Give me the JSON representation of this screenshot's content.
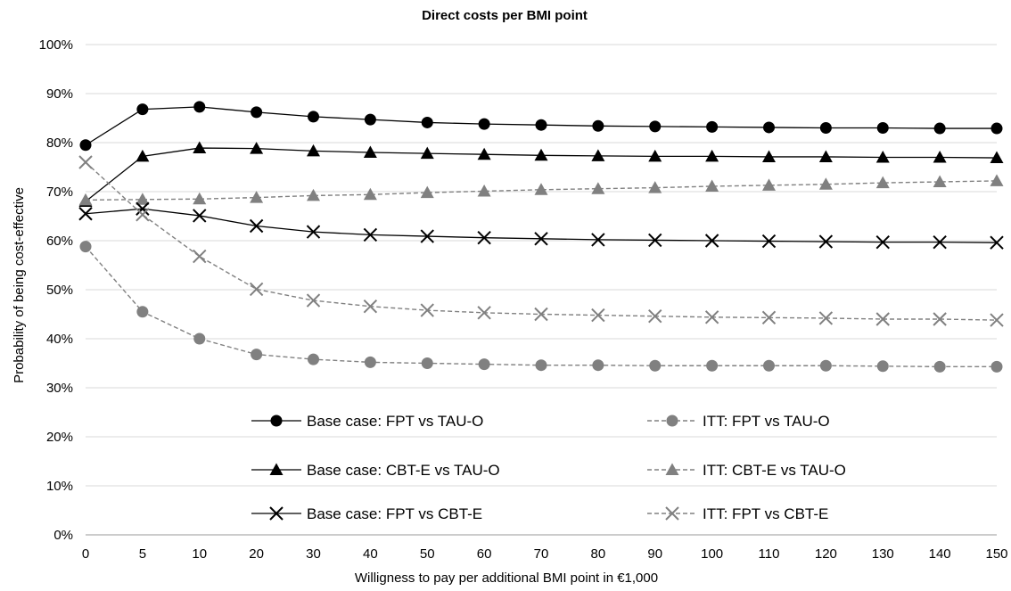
{
  "chart_data": {
    "type": "line",
    "title": "Direct costs per BMI point",
    "xlabel": "Willigness to pay per additional BMI point in €1,000",
    "ylabel": "Probability of being cost-effective",
    "categories": [
      "0",
      "5",
      "10",
      "20",
      "30",
      "40",
      "50",
      "60",
      "70",
      "80",
      "90",
      "100",
      "110",
      "120",
      "130",
      "140",
      "150"
    ],
    "yticks": [
      "0%",
      "10%",
      "20%",
      "30%",
      "40%",
      "50%",
      "60%",
      "70%",
      "80%",
      "90%",
      "100%"
    ],
    "ylim": [
      0,
      100
    ],
    "grid": true,
    "legend_placement": "bottom-center",
    "series": [
      {
        "name": "Base case: FPT vs TAU-O",
        "marker": "circle",
        "dashed": false,
        "color": "#000000",
        "values": [
          79.5,
          86.8,
          87.3,
          86.2,
          85.3,
          84.7,
          84.1,
          83.8,
          83.6,
          83.4,
          83.3,
          83.2,
          83.1,
          83.0,
          83.0,
          82.9,
          82.9
        ]
      },
      {
        "name": "ITT: FPT vs TAU-O",
        "marker": "circle",
        "dashed": true,
        "color": "#808080",
        "values": [
          58.8,
          45.5,
          40.0,
          36.8,
          35.8,
          35.2,
          35.0,
          34.8,
          34.6,
          34.6,
          34.5,
          34.5,
          34.5,
          34.5,
          34.4,
          34.3,
          34.3
        ]
      },
      {
        "name": "Base case: CBT-E vs TAU-O",
        "marker": "triangle",
        "dashed": false,
        "color": "#000000",
        "values": [
          68.0,
          77.2,
          78.9,
          78.8,
          78.3,
          78.0,
          77.8,
          77.6,
          77.4,
          77.3,
          77.2,
          77.2,
          77.1,
          77.1,
          77.0,
          77.0,
          76.9
        ]
      },
      {
        "name": "ITT: CBT-E vs TAU-O",
        "marker": "triangle",
        "dashed": true,
        "color": "#808080",
        "values": [
          68.3,
          68.4,
          68.5,
          68.8,
          69.2,
          69.4,
          69.8,
          70.1,
          70.4,
          70.6,
          70.8,
          71.1,
          71.3,
          71.5,
          71.8,
          72.0,
          72.2
        ]
      },
      {
        "name": "Base case: FPT vs CBT-E",
        "marker": "x",
        "dashed": false,
        "color": "#000000",
        "values": [
          65.5,
          66.5,
          65.1,
          63.0,
          61.8,
          61.2,
          60.9,
          60.6,
          60.4,
          60.2,
          60.1,
          60.0,
          59.9,
          59.8,
          59.7,
          59.7,
          59.6
        ]
      },
      {
        "name": "ITT: FPT vs CBT-E",
        "marker": "x",
        "dashed": true,
        "color": "#808080",
        "values": [
          76.0,
          65.3,
          56.8,
          50.1,
          47.8,
          46.6,
          45.8,
          45.3,
          45.0,
          44.8,
          44.6,
          44.4,
          44.3,
          44.2,
          44.0,
          44.0,
          43.8
        ]
      }
    ]
  }
}
